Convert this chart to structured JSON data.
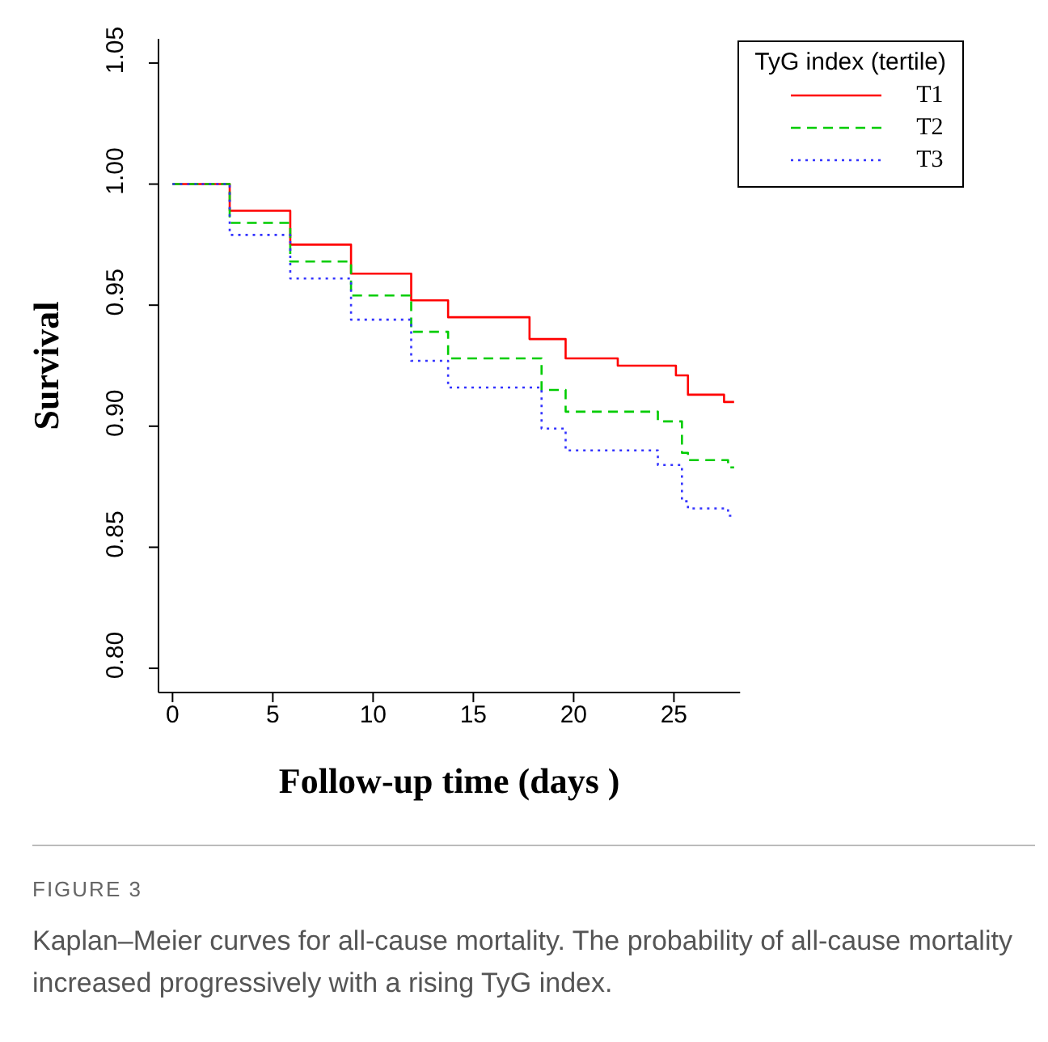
{
  "chart_data": {
    "type": "step",
    "xlabel": "Follow-up time (days )",
    "ylabel": "Survival",
    "legend_title": "TyG index (tertile)",
    "legend": "top right",
    "marker": "none",
    "grid": false,
    "xlim": [
      -0.7,
      28.3
    ],
    "xticks": [
      0,
      5,
      10,
      15,
      20,
      25
    ],
    "ylim": [
      0.79,
      1.06
    ],
    "yticks": [
      {
        "value": 0.8,
        "label": "0.80"
      },
      0.85,
      {
        "value": 0.9,
        "label": "0.90"
      },
      0.95,
      {
        "value": 1.0,
        "label": "1.00"
      },
      1.05
    ],
    "series": [
      {
        "name": "T1",
        "color": "#ff0000",
        "line_style": "solid",
        "x": [
          0,
          0.7,
          2.85,
          5.87,
          8.9,
          11.9,
          13.74,
          17.8,
          19.6,
          22.2,
          24.3,
          25.1,
          25.7,
          27.5,
          28
        ],
        "values": [
          1.0,
          1.0,
          0.989,
          0.975,
          0.963,
          0.952,
          0.945,
          0.936,
          0.928,
          0.925,
          0.925,
          0.921,
          0.913,
          0.91,
          0.91
        ]
      },
      {
        "name": "T2",
        "color": "#00cc00",
        "line_style": "dashed",
        "x": [
          0,
          0.7,
          2.85,
          5.87,
          8.9,
          11.9,
          13.74,
          18.4,
          19.6,
          24.2,
          25.4,
          25.7,
          27.7,
          28
        ],
        "values": [
          1.0,
          1.0,
          0.984,
          0.968,
          0.954,
          0.939,
          0.928,
          0.915,
          0.906,
          0.902,
          0.889,
          0.886,
          0.883,
          0.883
        ]
      },
      {
        "name": "T3",
        "color": "#3333ff",
        "line_style": "dotted",
        "x": [
          0,
          0.7,
          2.85,
          5.87,
          8.9,
          11.9,
          13.74,
          18.4,
          19.6,
          24.2,
          25.4,
          25.7,
          27.7,
          28
        ],
        "values": [
          1.0,
          1.0,
          0.979,
          0.961,
          0.944,
          0.927,
          0.916,
          0.899,
          0.89,
          0.884,
          0.869,
          0.866,
          0.863,
          0.863
        ]
      }
    ],
    "annotations": [
      "FIGURE 3",
      "Kaplan–Meier curves for all-cause mortality. The probability of all-cause mortality increased progressively with a rising TyG index."
    ]
  }
}
